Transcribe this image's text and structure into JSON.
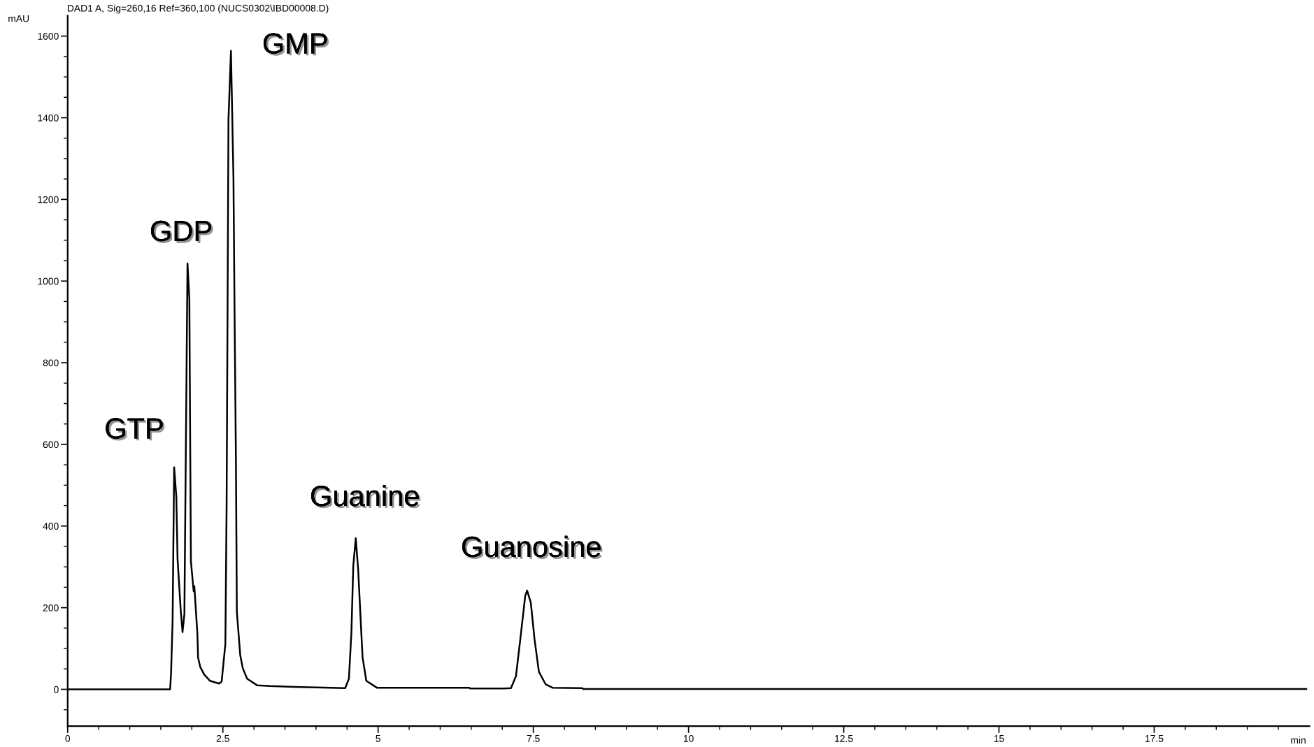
{
  "chart_data": {
    "type": "line",
    "title": "DAD1 A, Sig=260,16 Ref=360,100 (NUCS0302\\IBD00008.D)",
    "xlabel": "min",
    "ylabel": "mAU",
    "x": [
      0,
      1.65,
      1.665,
      1.69,
      1.715,
      1.75,
      1.77,
      1.82,
      1.85,
      1.88,
      1.93,
      1.96,
      1.975,
      1.985,
      2.02,
      2.03,
      2.04,
      2.09,
      2.1,
      2.135,
      2.2,
      2.29,
      2.44,
      2.48,
      2.54,
      2.56,
      2.59,
      2.63,
      2.67,
      2.69,
      2.71,
      2.725,
      2.78,
      2.82,
      2.89,
      3.05,
      3.26,
      3.65,
      4.47,
      4.53,
      4.57,
      4.6,
      4.64,
      4.68,
      4.72,
      4.75,
      4.81,
      4.98,
      6.47,
      6.48,
      7.03,
      7.14,
      7.22,
      7.29,
      7.37,
      7.4,
      7.46,
      7.52,
      7.59,
      7.7,
      7.81,
      8.29,
      8.3,
      19.95
    ],
    "series": [
      {
        "color": "#000000",
        "values": [
          0,
          0,
          38,
          167,
          544,
          472,
          319,
          196,
          140,
          184,
          1043,
          956,
          562,
          314,
          255,
          240,
          253,
          134,
          78,
          55,
          36,
          21,
          14,
          19,
          111,
          450,
          1396,
          1564,
          1255,
          889,
          562,
          190,
          83,
          52,
          26,
          10,
          8,
          6,
          3,
          26,
          139,
          302,
          370,
          291,
          167,
          78,
          21,
          4,
          4,
          2,
          2,
          3,
          32,
          122,
          229,
          242,
          212,
          122,
          43,
          12,
          4,
          3,
          1,
          1
        ]
      }
    ],
    "xlim": [
      0,
      20
    ],
    "ylim": [
      -90,
      1650
    ],
    "xticks": [
      0,
      {
        "value": 0.5,
        "label": null
      },
      {
        "value": 1,
        "label": null
      },
      {
        "value": 1.5,
        "label": null
      },
      {
        "value": 2,
        "label": null
      },
      2.5,
      {
        "value": 3,
        "label": null
      },
      {
        "value": 3.5,
        "label": null
      },
      {
        "value": 4,
        "label": null
      },
      {
        "value": 4.5,
        "label": null
      },
      5,
      {
        "value": 5.5,
        "label": null
      },
      {
        "value": 6,
        "label": null
      },
      {
        "value": 6.5,
        "label": null
      },
      {
        "value": 7,
        "label": null
      },
      7.5,
      {
        "value": 8,
        "label": null
      },
      {
        "value": 8.5,
        "label": null
      },
      {
        "value": 9,
        "label": null
      },
      {
        "value": 9.5,
        "label": null
      },
      10,
      {
        "value": 10.5,
        "label": null
      },
      {
        "value": 11,
        "label": null
      },
      {
        "value": 11.5,
        "label": null
      },
      {
        "value": 12,
        "label": null
      },
      12.5,
      {
        "value": 13,
        "label": null
      },
      {
        "value": 13.5,
        "label": null
      },
      {
        "value": 14,
        "label": null
      },
      {
        "value": 14.5,
        "label": null
      },
      15,
      {
        "value": 15.5,
        "label": null
      },
      {
        "value": 16,
        "label": null
      },
      {
        "value": 16.5,
        "label": null
      },
      {
        "value": 17,
        "label": null
      },
      17.5,
      {
        "value": 18,
        "label": null
      },
      {
        "value": 18.5,
        "label": null
      },
      {
        "value": 19,
        "label": null
      },
      {
        "value": 19.5,
        "label": null
      }
    ],
    "yticks": [
      {
        "value": -50,
        "label": null
      },
      0,
      {
        "value": 50,
        "label": null
      },
      {
        "value": 100,
        "label": null
      },
      {
        "value": 150,
        "label": null
      },
      200,
      {
        "value": 250,
        "label": null
      },
      {
        "value": 300,
        "label": null
      },
      {
        "value": 350,
        "label": null
      },
      400,
      {
        "value": 450,
        "label": null
      },
      {
        "value": 500,
        "label": null
      },
      {
        "value": 550,
        "label": null
      },
      600,
      {
        "value": 650,
        "label": null
      },
      {
        "value": 700,
        "label": null
      },
      {
        "value": 750,
        "label": null
      },
      800,
      {
        "value": 850,
        "label": null
      },
      {
        "value": 900,
        "label": null
      },
      {
        "value": 950,
        "label": null
      },
      1000,
      {
        "value": 1050,
        "label": null
      },
      {
        "value": 1100,
        "label": null
      },
      {
        "value": 1150,
        "label": null
      },
      1200,
      {
        "value": 1250,
        "label": null
      },
      {
        "value": 1300,
        "label": null
      },
      {
        "value": 1350,
        "label": null
      },
      1400,
      {
        "value": 1450,
        "label": null
      },
      {
        "value": 1500,
        "label": null
      },
      {
        "value": 1550,
        "label": null
      },
      1600
    ],
    "annotations": [
      {
        "text": "GTP",
        "x": 1.715,
        "y": 544
      },
      {
        "text": "GDP",
        "x": 1.93,
        "y": 1043
      },
      {
        "text": "GMP",
        "x": 2.63,
        "y": 1564
      },
      {
        "text": "Guanine",
        "x": 4.64,
        "y": 370
      },
      {
        "text": "Guanosine",
        "x": 7.4,
        "y": 242
      }
    ],
    "grid": false,
    "legend": false,
    "marker": "none",
    "line_style": "solid"
  }
}
